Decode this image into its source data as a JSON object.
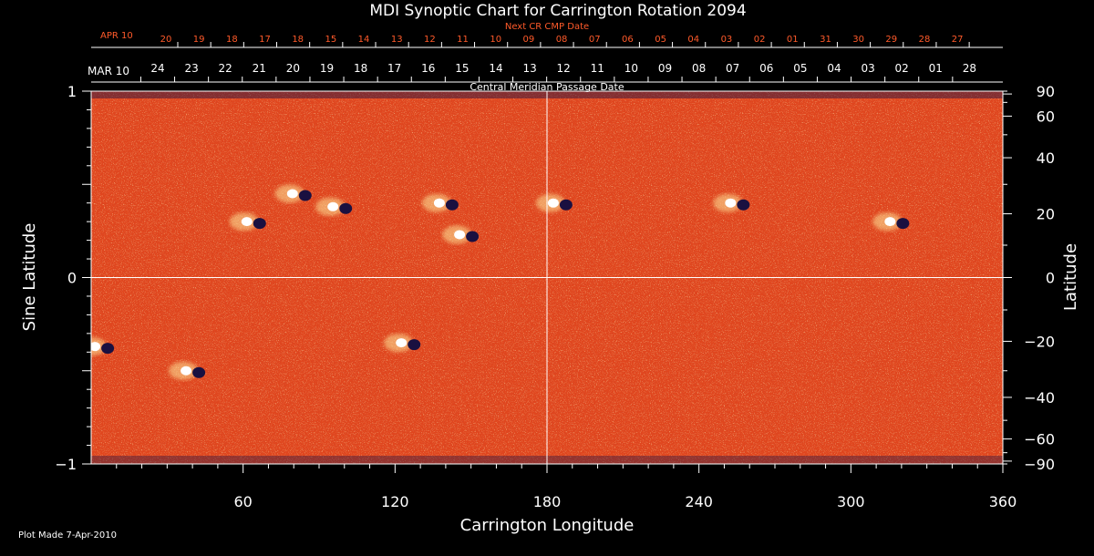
{
  "chart_data": {
    "type": "heatmap",
    "title": "MDI Synoptic Chart for Carrington Rotation 2094",
    "xlabel": "Carrington Longitude",
    "ylabel": "Sine Latitude",
    "ylabel_right": "Latitude",
    "xlim": [
      0,
      360
    ],
    "ylim": [
      -1,
      1
    ],
    "x_ticks": [
      60,
      120,
      180,
      240,
      300,
      360
    ],
    "y_ticks_left": [
      {
        "v": 1,
        "label": "1"
      },
      {
        "v": 0,
        "label": "0"
      },
      {
        "v": -1,
        "label": "−1"
      }
    ],
    "y_ticks_right": [
      {
        "lat": 90,
        "label": "90"
      },
      {
        "lat": 60,
        "label": "60"
      },
      {
        "lat": 40,
        "label": "40"
      },
      {
        "lat": 20,
        "label": "20"
      },
      {
        "lat": 0,
        "label": "0"
      },
      {
        "lat": -20,
        "label": "−20"
      },
      {
        "lat": -40,
        "label": "−40"
      },
      {
        "lat": -60,
        "label": "−60"
      },
      {
        "lat": -90,
        "label": "−90"
      }
    ],
    "top_axis_primary": {
      "start_label": "MAR 10",
      "caption": "Central Meridian Passage Date",
      "dates": [
        "24",
        "23",
        "22",
        "21",
        "20",
        "19",
        "18",
        "17",
        "16",
        "15",
        "14",
        "13",
        "12",
        "11",
        "10",
        "09",
        "08",
        "07",
        "06",
        "05",
        "04",
        "03",
        "02",
        "01",
        "28"
      ]
    },
    "top_axis_secondary": {
      "start_label": "APR 10",
      "caption": "Next CR CMP Date",
      "dates": [
        "20",
        "19",
        "18",
        "17",
        "18",
        "15",
        "14",
        "13",
        "12",
        "11",
        "10",
        "09",
        "08",
        "07",
        "06",
        "05",
        "04",
        "03",
        "02",
        "01",
        "31",
        "30",
        "29",
        "28",
        "27"
      ]
    },
    "active_regions": [
      {
        "lon": 64,
        "sinlat": 0.3,
        "polarity": "leading-positive"
      },
      {
        "lon": 82,
        "sinlat": 0.45,
        "polarity": "mixed"
      },
      {
        "lon": 98,
        "sinlat": 0.38,
        "polarity": "mixed"
      },
      {
        "lon": 140,
        "sinlat": 0.4,
        "polarity": "mixed"
      },
      {
        "lon": 148,
        "sinlat": 0.23,
        "polarity": "leading-positive"
      },
      {
        "lon": 185,
        "sinlat": 0.4,
        "polarity": "mixed"
      },
      {
        "lon": 255,
        "sinlat": 0.4,
        "polarity": "mixed"
      },
      {
        "lon": 318,
        "sinlat": 0.3,
        "polarity": "leading-positive"
      },
      {
        "lon": 125,
        "sinlat": -0.35,
        "polarity": "mixed"
      },
      {
        "lon": 40,
        "sinlat": -0.5,
        "polarity": "mixed"
      },
      {
        "lon": 4,
        "sinlat": -0.37,
        "polarity": "mixed"
      }
    ],
    "colors": {
      "background": "#000000",
      "base_field": "#e0461e",
      "positive": "#ffffff",
      "negative": "#1a1040",
      "axis": "#ffffff",
      "secondary_axis": "#ff5a2a"
    }
  },
  "footer": {
    "plot_made": "Plot Made  7-Apr-2010"
  }
}
